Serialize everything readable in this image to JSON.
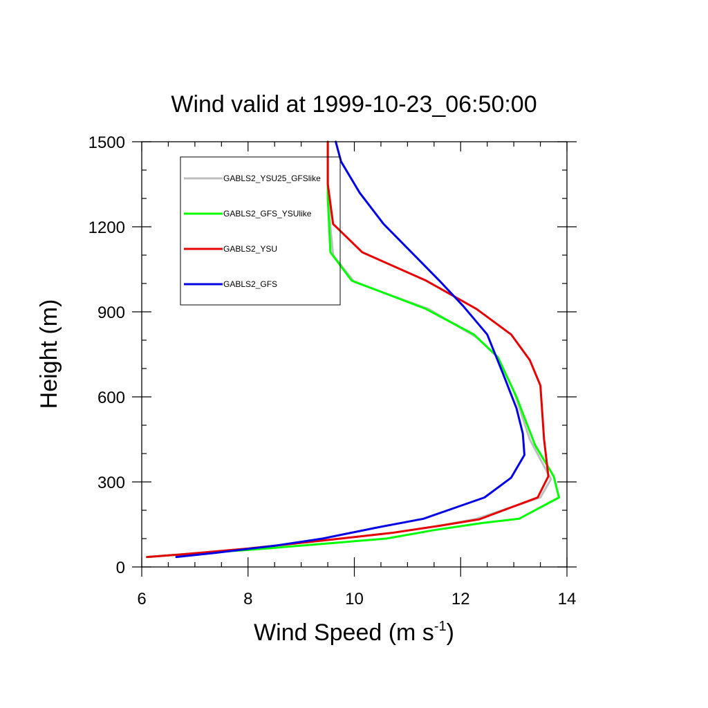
{
  "chart_data": {
    "type": "line",
    "title": "Wind valid at 1999-10-23_06:50:00",
    "xlabel": "Wind Speed (m s",
    "xlabel_unit_exponent": "-1",
    "xlabel_close": ")",
    "ylabel": "Height (m)",
    "xlim": [
      6,
      14
    ],
    "ylim": [
      0,
      1500
    ],
    "x_ticks": [
      "6",
      "8",
      "10",
      "12",
      "14"
    ],
    "y_ticks": [
      "0",
      "300",
      "600",
      "900",
      "1200",
      "1500"
    ],
    "grid": false,
    "legend_position": "top-left",
    "series": [
      {
        "name": "GABLS2_YSU25_GFSlike",
        "color": "#bfbfbf",
        "points": [
          [
            6.1,
            35
          ],
          [
            6.8,
            45
          ],
          [
            8.0,
            65
          ],
          [
            9.5,
            95
          ],
          [
            10.7,
            120
          ],
          [
            11.6,
            145
          ],
          [
            12.3,
            170
          ],
          [
            13.5,
            245
          ],
          [
            13.7,
            310
          ],
          [
            13.3,
            450
          ],
          [
            13.0,
            620
          ],
          [
            12.7,
            740
          ],
          [
            12.3,
            810
          ],
          [
            11.4,
            910
          ],
          [
            10.0,
            1005
          ],
          [
            9.6,
            1100
          ],
          [
            9.55,
            1200
          ],
          [
            9.5,
            1350
          ],
          [
            9.5,
            1500
          ]
        ]
      },
      {
        "name": "GABLS2_GFS_YSUlike",
        "color": "#00ff00",
        "points": [
          [
            6.1,
            35
          ],
          [
            6.8,
            45
          ],
          [
            8.0,
            60
          ],
          [
            9.3,
            80
          ],
          [
            10.6,
            100
          ],
          [
            11.5,
            130
          ],
          [
            12.4,
            155
          ],
          [
            13.1,
            170
          ],
          [
            13.85,
            245
          ],
          [
            13.75,
            320
          ],
          [
            13.4,
            430
          ],
          [
            13.05,
            600
          ],
          [
            12.7,
            740
          ],
          [
            12.25,
            820
          ],
          [
            11.35,
            910
          ],
          [
            9.95,
            1010
          ],
          [
            9.55,
            1110
          ],
          [
            9.5,
            1300
          ],
          [
            9.5,
            1500
          ]
        ]
      },
      {
        "name": "GABLS2_YSU",
        "color": "#e60000",
        "points": [
          [
            6.1,
            35
          ],
          [
            6.8,
            45
          ],
          [
            8.0,
            65
          ],
          [
            9.5,
            95
          ],
          [
            10.7,
            120
          ],
          [
            11.6,
            145
          ],
          [
            12.35,
            168
          ],
          [
            13.45,
            245
          ],
          [
            13.65,
            320
          ],
          [
            13.57,
            450
          ],
          [
            13.5,
            640
          ],
          [
            13.3,
            730
          ],
          [
            12.95,
            820
          ],
          [
            12.3,
            910
          ],
          [
            11.35,
            1010
          ],
          [
            10.15,
            1110
          ],
          [
            9.6,
            1210
          ],
          [
            9.5,
            1350
          ],
          [
            9.5,
            1500
          ]
        ]
      },
      {
        "name": "GABLS2_GFS",
        "color": "#0000e6",
        "points": [
          [
            6.65,
            35
          ],
          [
            7.4,
            50
          ],
          [
            8.5,
            75
          ],
          [
            9.4,
            100
          ],
          [
            10.45,
            140
          ],
          [
            11.3,
            170
          ],
          [
            12.45,
            245
          ],
          [
            12.95,
            315
          ],
          [
            13.2,
            395
          ],
          [
            13.17,
            470
          ],
          [
            13.05,
            560
          ],
          [
            12.8,
            680
          ],
          [
            12.5,
            820
          ],
          [
            12.05,
            920
          ],
          [
            11.6,
            1010
          ],
          [
            10.55,
            1210
          ],
          [
            10.1,
            1320
          ],
          [
            9.75,
            1430
          ],
          [
            9.65,
            1500
          ]
        ]
      }
    ]
  }
}
